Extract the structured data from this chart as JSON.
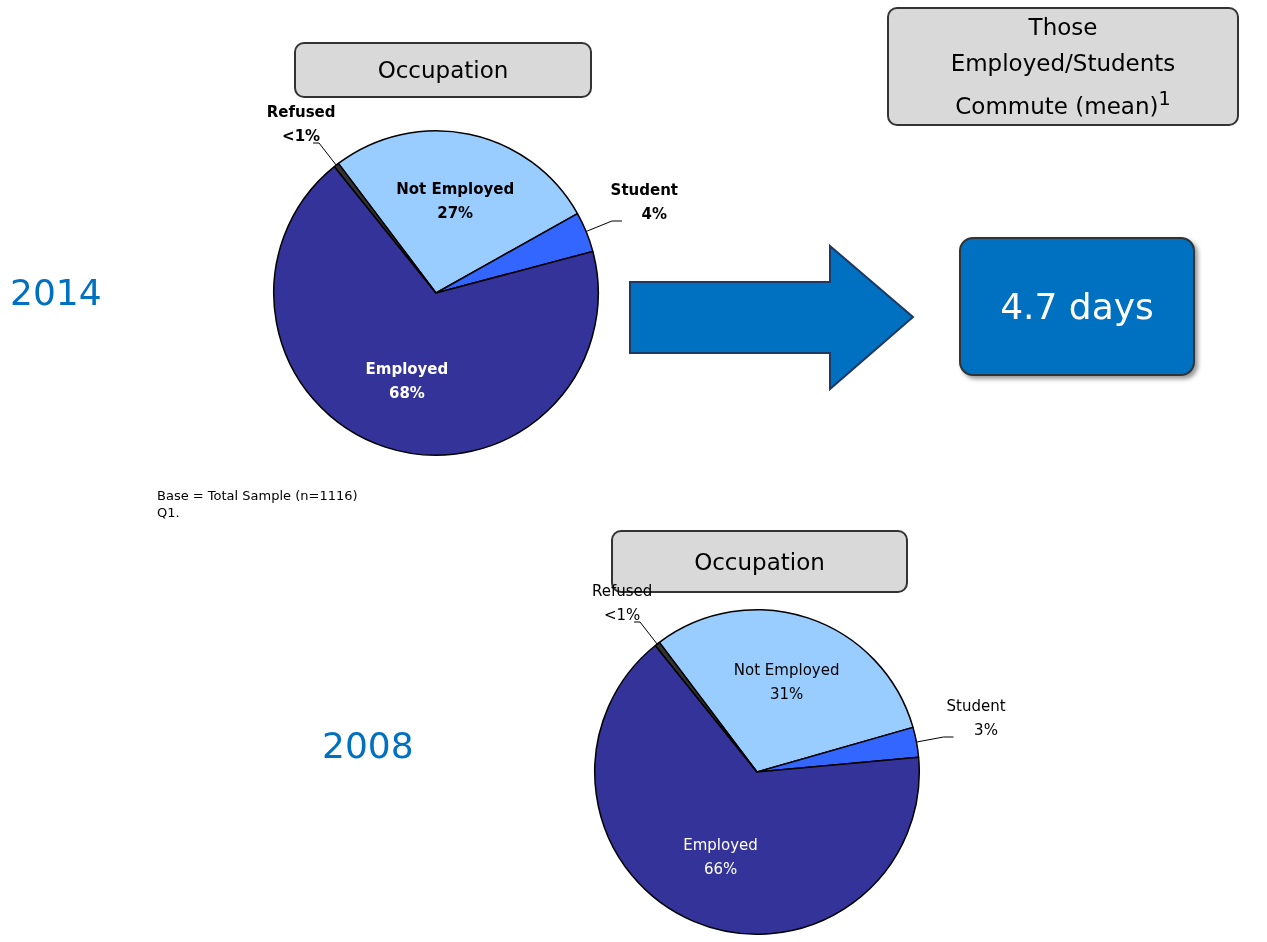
{
  "chart_data": [
    {
      "type": "pie",
      "title": "Occupation",
      "subtitle": "2014",
      "categories": [
        "Not Employed",
        "Student",
        "Employed",
        "Refused"
      ],
      "values": [
        27,
        4,
        68,
        0.5
      ],
      "colors": [
        "#99ccff",
        "#3366ff",
        "#333399",
        "#333333"
      ],
      "value_labels": [
        "27%",
        "4%",
        "68%",
        "<1%"
      ],
      "annotations": [
        "Base = Total Sample (n=1116)",
        "Q1."
      ]
    },
    {
      "type": "other",
      "title": "Those Employed/Students Commute (mean)$^{1}$",
      "annotations": [
        "4.7 days"
      ]
    },
    {
      "type": "pie",
      "title": "Occupation",
      "subtitle": "2008",
      "categories": [
        "Not Employed",
        "Student",
        "Employed",
        "Refused"
      ],
      "values": [
        31,
        3,
        66,
        0.5
      ],
      "colors": [
        "#99ccff",
        "#3366ff",
        "#333399",
        "#333333"
      ],
      "value_labels": [
        "31%",
        "3%",
        "66%",
        "<1%"
      ]
    }
  ]
}
